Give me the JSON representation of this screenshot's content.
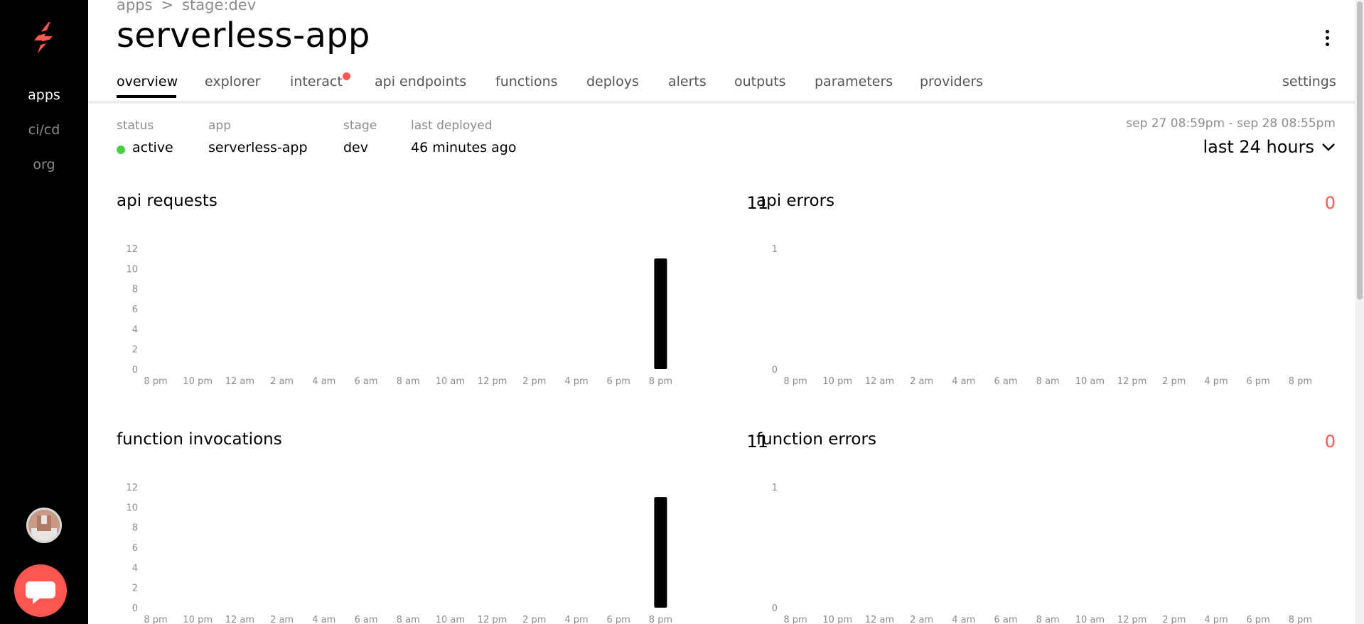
{
  "sidebar": {
    "items": [
      {
        "label": "apps",
        "active": true
      },
      {
        "label": "ci/cd",
        "active": false
      },
      {
        "label": "org",
        "active": false
      }
    ]
  },
  "breadcrumb": {
    "root": "apps",
    "separator": ">",
    "current": "stage:dev"
  },
  "header": {
    "title": "serverless-app"
  },
  "tabs": [
    {
      "label": "overview",
      "active": true
    },
    {
      "label": "explorer"
    },
    {
      "label": "interact",
      "badge": true
    },
    {
      "label": "api endpoints"
    },
    {
      "label": "functions"
    },
    {
      "label": "deploys"
    },
    {
      "label": "alerts"
    },
    {
      "label": "outputs"
    },
    {
      "label": "parameters"
    },
    {
      "label": "providers"
    },
    {
      "label": "settings"
    }
  ],
  "info": {
    "status_label": "status",
    "status_value": "active",
    "app_label": "app",
    "app_value": "serverless-app",
    "stage_label": "stage",
    "stage_value": "dev",
    "deployed_label": "last deployed",
    "deployed_value": "46 minutes ago"
  },
  "time": {
    "range": "sep 27 08:59pm - sep 28 08:55pm",
    "select": "last 24 hours"
  },
  "colors": {
    "accent": "#fd5750",
    "status_active": "#4ad04a",
    "bar": "#000000"
  },
  "chart_data": [
    {
      "type": "bar",
      "title": "api requests",
      "total": "11",
      "categories": [
        "8 pm",
        "10 pm",
        "12 am",
        "2 am",
        "4 am",
        "6 am",
        "8 am",
        "10 am",
        "12 pm",
        "2 pm",
        "4 pm",
        "6 pm",
        "8 pm"
      ],
      "yticks": [
        0,
        2,
        4,
        6,
        8,
        10,
        12
      ],
      "ylim": [
        0,
        12
      ],
      "bars": [
        {
          "x_index": 12,
          "value": 11
        }
      ]
    },
    {
      "type": "bar",
      "title": "api errors",
      "total": "0",
      "categories": [
        "8 pm",
        "10 pm",
        "12 am",
        "2 am",
        "4 am",
        "6 am",
        "8 am",
        "10 am",
        "12 pm",
        "2 pm",
        "4 pm",
        "6 pm",
        "8 pm"
      ],
      "yticks": [
        0,
        1
      ],
      "ylim": [
        0,
        1
      ],
      "bars": []
    },
    {
      "type": "bar",
      "title": "function invocations",
      "total": "11",
      "categories": [
        "8 pm",
        "10 pm",
        "12 am",
        "2 am",
        "4 am",
        "6 am",
        "8 am",
        "10 am",
        "12 pm",
        "2 pm",
        "4 pm",
        "6 pm",
        "8 pm"
      ],
      "yticks": [
        0,
        2,
        4,
        6,
        8,
        10,
        12
      ],
      "ylim": [
        0,
        12
      ],
      "bars": [
        {
          "x_index": 12,
          "value": 11
        }
      ]
    },
    {
      "type": "bar",
      "title": "function errors",
      "total": "0",
      "categories": [
        "8 pm",
        "10 pm",
        "12 am",
        "2 am",
        "4 am",
        "6 am",
        "8 am",
        "10 am",
        "12 pm",
        "2 pm",
        "4 pm",
        "6 pm",
        "8 pm"
      ],
      "yticks": [
        0,
        1
      ],
      "ylim": [
        0,
        1
      ],
      "bars": []
    }
  ]
}
